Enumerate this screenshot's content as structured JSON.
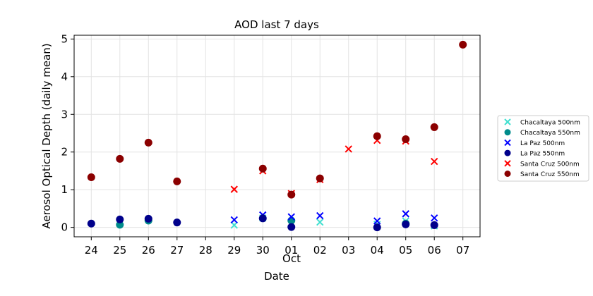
{
  "chart_data": {
    "type": "scatter",
    "title": "AOD last 7 days",
    "xlabel": "Date",
    "ylabel": "Aerosol Optical Depth (daily mean)",
    "x_month_label": "Oct",
    "x_ticks": [
      "24",
      "25",
      "26",
      "27",
      "28",
      "29",
      "30",
      "01",
      "02",
      "03",
      "04",
      "05",
      "06",
      "07"
    ],
    "x_range": [
      -0.6,
      13.6
    ],
    "ylim": [
      -0.25,
      5.1
    ],
    "y_ticks": [
      0,
      1,
      2,
      3,
      4,
      5
    ],
    "grid": true,
    "legend_position": "right",
    "series": [
      {
        "name": "Chacaltaya 500nm",
        "marker": "x",
        "color": "#40e0d0",
        "points": [
          [
            "29",
            0.06
          ],
          [
            "30",
            0.25
          ],
          [
            "01",
            0.12
          ],
          [
            "02",
            0.14
          ],
          [
            "04",
            0.08
          ],
          [
            "05",
            0.17
          ],
          [
            "06",
            0.04
          ]
        ]
      },
      {
        "name": "Chacaltaya 550nm",
        "marker": "o",
        "color": "#008b8b",
        "points": [
          [
            "25",
            0.07
          ],
          [
            "26",
            0.18
          ],
          [
            "01",
            0.18
          ],
          [
            "05",
            0.1
          ]
        ]
      },
      {
        "name": "La Paz 500nm",
        "marker": "x",
        "color": "#0000ff",
        "points": [
          [
            "29",
            0.2
          ],
          [
            "30",
            0.33
          ],
          [
            "01",
            0.28
          ],
          [
            "02",
            0.31
          ],
          [
            "04",
            0.17
          ],
          [
            "05",
            0.36
          ],
          [
            "06",
            0.25
          ]
        ]
      },
      {
        "name": "La Paz 550nm",
        "marker": "o",
        "color": "#00008b",
        "points": [
          [
            "24",
            0.1
          ],
          [
            "25",
            0.21
          ],
          [
            "26",
            0.23
          ],
          [
            "27",
            0.13
          ],
          [
            "30",
            0.24
          ],
          [
            "01",
            0.01
          ],
          [
            "04",
            0.0
          ],
          [
            "05",
            0.08
          ],
          [
            "06",
            0.06
          ]
        ]
      },
      {
        "name": "Santa Cruz 500nm",
        "marker": "x",
        "color": "#ff0000",
        "points": [
          [
            "29",
            1.01
          ],
          [
            "30",
            1.5
          ],
          [
            "01",
            0.9
          ],
          [
            "02",
            1.27
          ],
          [
            "03",
            2.08
          ],
          [
            "04",
            2.31
          ],
          [
            "05",
            2.29
          ],
          [
            "06",
            1.75
          ]
        ]
      },
      {
        "name": "Santa Cruz 550nm",
        "marker": "o",
        "color": "#8b0000",
        "points": [
          [
            "24",
            1.33
          ],
          [
            "25",
            1.82
          ],
          [
            "26",
            2.25
          ],
          [
            "27",
            1.22
          ],
          [
            "30",
            1.56
          ],
          [
            "01",
            0.87
          ],
          [
            "02",
            1.3
          ],
          [
            "04",
            2.42
          ],
          [
            "05",
            2.34
          ],
          [
            "06",
            2.66
          ],
          [
            "07",
            4.85
          ]
        ]
      }
    ]
  }
}
